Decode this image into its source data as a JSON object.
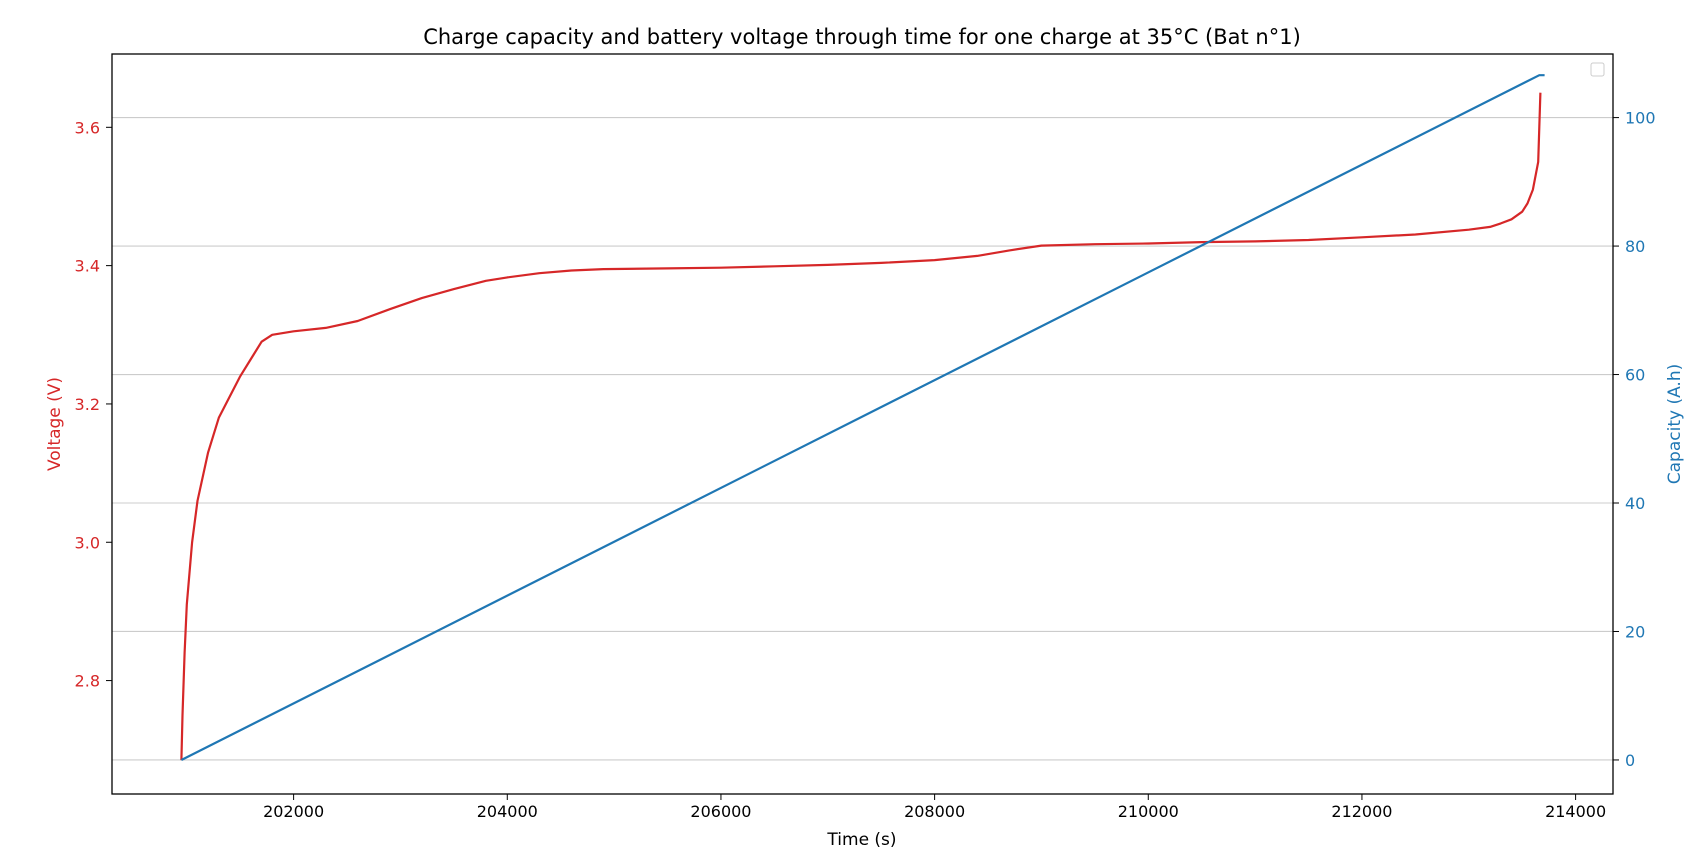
{
  "chart_data": {
    "type": "line",
    "title": "Charge capacity and battery voltage through time for one charge at 35°C (Bat n°1)",
    "xlabel": "Time (s)",
    "ylabel_left": "Voltage (V)",
    "ylabel_right": "Capacity (A.h)",
    "xlim": [
      200300,
      214350
    ],
    "ylim_left": [
      2.636,
      3.706
    ],
    "ylim_right": [
      -5.3,
      109.9
    ],
    "x_ticks": [
      202000,
      204000,
      206000,
      208000,
      210000,
      212000,
      214000
    ],
    "y_ticks_left": [
      2.8,
      3.0,
      3.2,
      3.4,
      3.6
    ],
    "y_ticks_right": [
      0,
      20,
      40,
      60,
      80,
      100
    ],
    "grid": "horizontal (right axis)",
    "legend": "upper-right (empty)",
    "colors": {
      "voltage": "#d62728",
      "capacity": "#1f77b4"
    },
    "series": [
      {
        "name": "Voltage (V)",
        "axis": "left",
        "x": [
          200950,
          200960,
          200980,
          201000,
          201050,
          201100,
          201200,
          201300,
          201400,
          201500,
          201600,
          201700,
          201800,
          202000,
          202300,
          202600,
          202900,
          203200,
          203500,
          203800,
          204000,
          204300,
          204600,
          204900,
          205500,
          206000,
          206500,
          207000,
          207500,
          208000,
          208400,
          208700,
          209000,
          209500,
          210000,
          210500,
          211000,
          211500,
          212000,
          212500,
          213000,
          213200,
          213300,
          213400,
          213500,
          213550,
          213600,
          213650,
          213670
        ],
        "y": [
          2.685,
          2.75,
          2.84,
          2.91,
          3.0,
          3.06,
          3.13,
          3.18,
          3.21,
          3.24,
          3.265,
          3.29,
          3.3,
          3.305,
          3.31,
          3.32,
          3.337,
          3.353,
          3.366,
          3.378,
          3.383,
          3.389,
          3.393,
          3.395,
          3.396,
          3.397,
          3.399,
          3.401,
          3.404,
          3.408,
          3.414,
          3.422,
          3.429,
          3.431,
          3.432,
          3.434,
          3.435,
          3.437,
          3.441,
          3.445,
          3.452,
          3.456,
          3.461,
          3.467,
          3.478,
          3.49,
          3.51,
          3.55,
          3.65
        ]
      },
      {
        "name": "Capacity (A.h)",
        "axis": "right",
        "x": [
          200950,
          213660,
          213670,
          213710
        ],
        "y": [
          0,
          106.6,
          106.6,
          106.6
        ]
      }
    ]
  }
}
